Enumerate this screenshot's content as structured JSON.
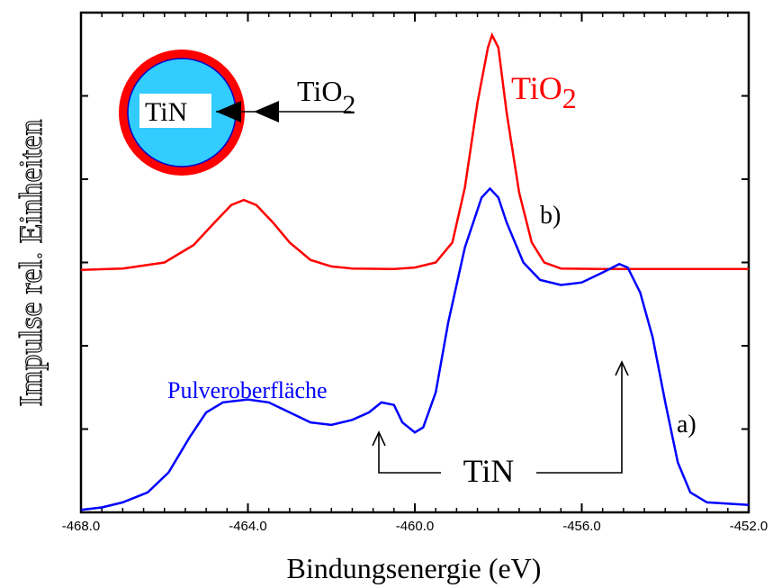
{
  "chart_data": {
    "type": "line",
    "xlabel": "Bindungsenergie (eV)",
    "ylabel": "Impulse rel. Einheiten",
    "xlim": [
      -468,
      -452
    ],
    "ylim": [
      0,
      1
    ],
    "x_ticks": [
      "-468.0",
      "-464.0",
      "-460.0",
      "-456.0",
      "-452.0"
    ],
    "grid": false,
    "series": [
      {
        "name": "TiO2",
        "label": "TiO",
        "label_sub": "2",
        "curve_label": "b)",
        "color": "#ff0000",
        "points": [
          [
            -468.0,
            0.485
          ],
          [
            -467.0,
            0.488
          ],
          [
            -466.0,
            0.5
          ],
          [
            -465.3,
            0.535
          ],
          [
            -464.8,
            0.58
          ],
          [
            -464.4,
            0.615
          ],
          [
            -464.1,
            0.625
          ],
          [
            -463.8,
            0.615
          ],
          [
            -463.4,
            0.58
          ],
          [
            -463.0,
            0.54
          ],
          [
            -462.5,
            0.505
          ],
          [
            -462.0,
            0.492
          ],
          [
            -461.5,
            0.488
          ],
          [
            -460.5,
            0.487
          ],
          [
            -460.0,
            0.49
          ],
          [
            -459.5,
            0.5
          ],
          [
            -459.1,
            0.54
          ],
          [
            -458.8,
            0.65
          ],
          [
            -458.5,
            0.82
          ],
          [
            -458.25,
            0.93
          ],
          [
            -458.15,
            0.955
          ],
          [
            -458.0,
            0.93
          ],
          [
            -457.8,
            0.8
          ],
          [
            -457.5,
            0.64
          ],
          [
            -457.2,
            0.54
          ],
          [
            -456.9,
            0.5
          ],
          [
            -456.5,
            0.488
          ],
          [
            -455.5,
            0.487
          ],
          [
            -454.0,
            0.487
          ],
          [
            -452.0,
            0.487
          ]
        ]
      },
      {
        "name": "Pulveroberfläche",
        "label": "Pulveroberfläche",
        "curve_label": "a)",
        "color": "#0000ff",
        "points": [
          [
            -468.0,
            0.005
          ],
          [
            -467.5,
            0.01
          ],
          [
            -467.0,
            0.02
          ],
          [
            -466.4,
            0.04
          ],
          [
            -465.9,
            0.08
          ],
          [
            -465.4,
            0.15
          ],
          [
            -465.0,
            0.2
          ],
          [
            -464.6,
            0.22
          ],
          [
            -464.0,
            0.226
          ],
          [
            -463.5,
            0.22
          ],
          [
            -463.0,
            0.2
          ],
          [
            -462.5,
            0.18
          ],
          [
            -462.0,
            0.175
          ],
          [
            -461.5,
            0.185
          ],
          [
            -461.1,
            0.2
          ],
          [
            -460.8,
            0.22
          ],
          [
            -460.5,
            0.215
          ],
          [
            -460.3,
            0.18
          ],
          [
            -460.0,
            0.16
          ],
          [
            -459.8,
            0.17
          ],
          [
            -459.5,
            0.24
          ],
          [
            -459.2,
            0.38
          ],
          [
            -458.8,
            0.53
          ],
          [
            -458.4,
            0.63
          ],
          [
            -458.2,
            0.648
          ],
          [
            -458.0,
            0.63
          ],
          [
            -457.8,
            0.58
          ],
          [
            -457.4,
            0.5
          ],
          [
            -457.0,
            0.465
          ],
          [
            -456.5,
            0.455
          ],
          [
            -456.0,
            0.46
          ],
          [
            -455.5,
            0.48
          ],
          [
            -455.1,
            0.497
          ],
          [
            -454.9,
            0.49
          ],
          [
            -454.6,
            0.44
          ],
          [
            -454.3,
            0.35
          ],
          [
            -454.0,
            0.22
          ],
          [
            -453.7,
            0.1
          ],
          [
            -453.4,
            0.04
          ],
          [
            -453.0,
            0.02
          ],
          [
            -452.0,
            0.015
          ]
        ]
      }
    ],
    "annotations": {
      "tin_label": "TiN",
      "tin_peaks": [
        -460.8,
        -455.1
      ]
    },
    "inset": {
      "inner_label": "TiN",
      "outer_label": "TiO",
      "outer_label_sub": "2",
      "core_color": "#33ccff",
      "shell_color": "#ff0000"
    }
  }
}
